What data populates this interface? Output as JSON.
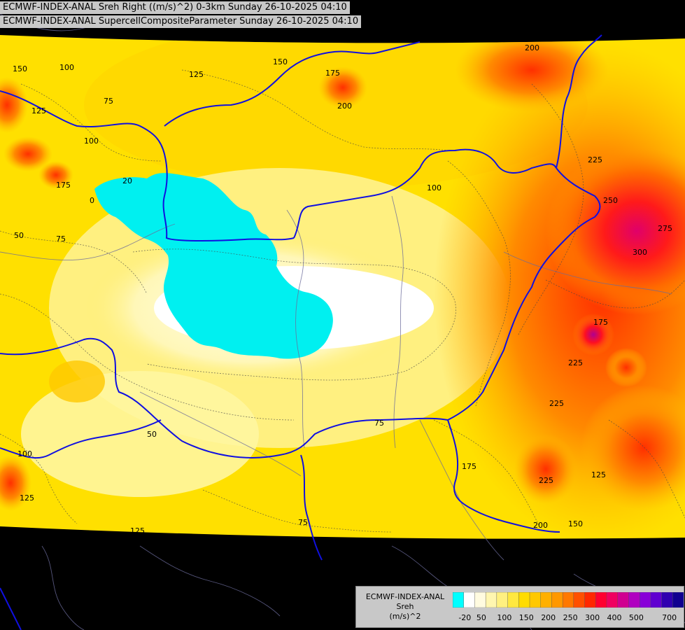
{
  "header": {
    "line1": "ECMWF-INDEX-ANAL Sreh Right ((m/s)^2) 0-3km Sunday 26-10-2025 04:10",
    "line2": "ECMWF-INDEX-ANAL SupercellCompositeParameter Sunday 26-10-2025 04:10"
  },
  "legend": {
    "title_line1": "ECMWF-INDEX-ANAL",
    "title_line2": "Sreh",
    "title_line3": "(m/s)^2",
    "ticks": [
      "-20",
      "50",
      "100",
      "150",
      "200",
      "250",
      "300",
      "400",
      "500",
      "700"
    ],
    "colors": [
      "#00ffff",
      "#ffffff",
      "#fffbe0",
      "#fff6b0",
      "#fff080",
      "#ffe840",
      "#ffdc00",
      "#ffc800",
      "#ffb000",
      "#ff9800",
      "#ff7800",
      "#ff5000",
      "#ff2800",
      "#ff0030",
      "#f00060",
      "#d00090",
      "#b000c0",
      "#8800d8",
      "#6000d0",
      "#3000b0",
      "#100090"
    ]
  },
  "contour_labels": [
    "150",
    "100",
    "125",
    "175",
    "200",
    "75",
    "20",
    "0",
    "50",
    "75",
    "100",
    "125",
    "150",
    "175",
    "200",
    "225",
    "250",
    "275",
    "300",
    "225",
    "225",
    "225",
    "175",
    "125",
    "200",
    "150",
    "75",
    "125",
    "50",
    "100",
    "125",
    "175",
    "100",
    "75"
  ]
}
